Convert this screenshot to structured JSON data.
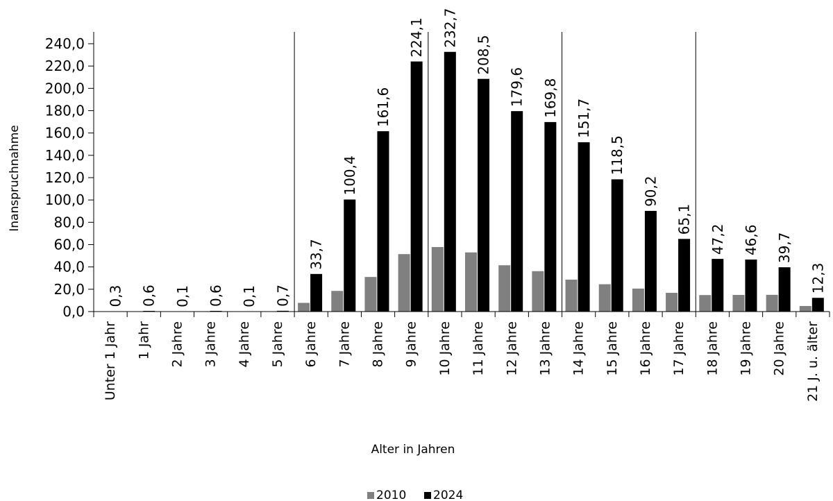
{
  "chart_data": {
    "type": "bar",
    "xlabel": "Alter in Jahren",
    "ylabel": "Inanspruchnahme",
    "ylim": [
      0,
      240
    ],
    "yticks": [
      "0,0",
      "20,0",
      "40,0",
      "60,0",
      "80,0",
      "100,0",
      "120,0",
      "140,0",
      "160,0",
      "180,0",
      "200,0",
      "220,0",
      "240,0"
    ],
    "categories": [
      "Unter 1 Jahr",
      "1 Jahr",
      "2 Jahre",
      "3 Jahre",
      "4 Jahre",
      "5 Jahre",
      "6 Jahre",
      "7 Jahre",
      "8 Jahre",
      "9 Jahre",
      "10 Jahre",
      "11 Jahre",
      "12 Jahre",
      "13 Jahre",
      "14 Jahre",
      "15 Jahre",
      "16 Jahre",
      "17 Jahre",
      "18 Jahre",
      "19 Jahre",
      "20 Jahre",
      "21 J. u. älter"
    ],
    "series": [
      {
        "name": "2010",
        "color": "#808080",
        "values": [
          0,
          0,
          0,
          0,
          0.3,
          0.1,
          7.8,
          18.5,
          31,
          51.5,
          57.8,
          53,
          41.5,
          36.2,
          28.6,
          24.5,
          20.6,
          16.8,
          14.8,
          14.9,
          15,
          5
        ]
      },
      {
        "name": "2024",
        "color": "#000000",
        "values": [
          0.3,
          0.6,
          0.1,
          0.6,
          0.1,
          0.7,
          33.7,
          100.4,
          161.6,
          224.1,
          232.7,
          208.5,
          179.6,
          169.8,
          151.7,
          118.5,
          90.2,
          65.1,
          47.2,
          46.6,
          39.7,
          12.3
        ],
        "labels": [
          "0,3",
          "0,6",
          "0,1",
          "0,6",
          "0,1",
          "0,7",
          "33,7",
          "100,4",
          "161,6",
          "224,1",
          "232,7",
          "208,5",
          "179,6",
          "169,8",
          "151,7",
          "118,5",
          "90,2",
          "65,1",
          "47,2",
          "46,6",
          "39,7",
          "12,3"
        ]
      }
    ],
    "group_separators_after_index": [
      5,
      9,
      13,
      17
    ],
    "grid": false,
    "legend": "bottom-center"
  }
}
